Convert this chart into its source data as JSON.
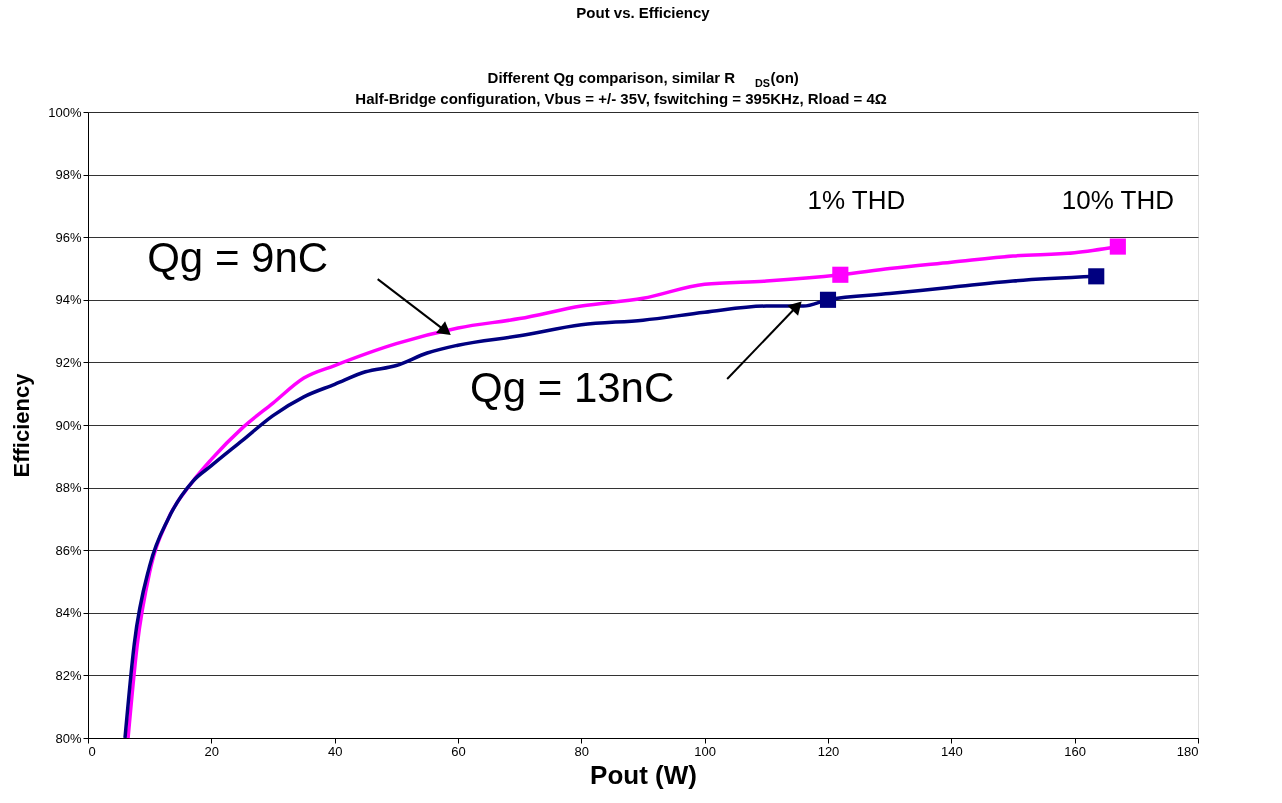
{
  "chart_data": {
    "type": "line",
    "title": "Pout vs. Efficiency",
    "subtitle": "Different Qg comparison, similar R$_{DS}$(on)\nHalf-Bridge configuration, Vbus = +/- 35V, fswitching = 395KHz, Rload = 4Ω",
    "xlabel": "Pout (W)",
    "ylabel": "Efficiency",
    "xlim": [
      0,
      180
    ],
    "xticks": [
      0,
      20,
      40,
      60,
      80,
      100,
      120,
      140,
      160,
      180
    ],
    "ylim": [
      80,
      100
    ],
    "yticks": [
      {
        "value": 80,
        "label": "80%"
      },
      {
        "value": 82,
        "label": "82%"
      },
      {
        "value": 84,
        "label": "84%"
      },
      {
        "value": 86,
        "label": "86%"
      },
      {
        "value": 88,
        "label": "88%"
      },
      {
        "value": 90,
        "label": "90%"
      },
      {
        "value": 92,
        "label": "92%"
      },
      {
        "value": 94,
        "label": "94%"
      },
      {
        "value": 96,
        "label": "96%"
      },
      {
        "value": 98,
        "label": "98%"
      },
      {
        "value": 100,
        "label": "100%"
      }
    ],
    "grid": "y",
    "marker": "none",
    "line_style": "solid",
    "series": [
      {
        "color": "#ff00ff",
        "x": [
          6.5,
          8,
          10,
          13,
          17,
          20,
          25,
          30,
          35,
          40,
          50,
          60,
          70,
          80,
          90,
          100,
          110,
          122,
          130,
          140,
          150,
          160,
          167
        ],
        "values": [
          80,
          83,
          85.3,
          87,
          88.2,
          88.9,
          89.9,
          90.7,
          91.5,
          91.9,
          92.6,
          93.1,
          93.4,
          93.8,
          94.05,
          94.5,
          94.6,
          94.8,
          95.0,
          95.2,
          95.4,
          95.5,
          95.7
        ]
      },
      {
        "color": "#000080",
        "x": [
          6,
          7.5,
          10,
          13,
          17,
          20,
          25,
          30,
          35,
          40,
          45,
          50,
          55,
          60,
          70,
          80,
          90,
          100,
          110,
          116,
          120,
          130,
          140,
          150,
          163.5
        ],
        "values": [
          80,
          83,
          85.5,
          87,
          88.2,
          88.7,
          89.5,
          90.3,
          90.9,
          91.3,
          91.7,
          91.9,
          92.3,
          92.55,
          92.85,
          93.2,
          93.35,
          93.6,
          93.8,
          93.8,
          94.0,
          94.2,
          94.4,
          94.6,
          94.75
        ]
      },
      {
        "type": "scatter",
        "marker": "square",
        "color": "#ff00ff",
        "x": [
          122,
          167
        ],
        "values": [
          94.8,
          95.7
        ]
      },
      {
        "type": "scatter",
        "marker": "square",
        "color": "#000080",
        "x": [
          120,
          163.5
        ],
        "values": [
          94.0,
          94.75
        ]
      }
    ],
    "annotations": [
      {
        "text": "1% THD",
        "x": 122,
        "y": 94.8
      },
      {
        "text": "10% THD",
        "x": 167,
        "y": 95.7
      },
      {
        "text": "Qg = 9nC",
        "x": 58,
        "y": 93.0
      },
      {
        "text": "Qg = 13nC",
        "x": 115,
        "y": 93.8
      }
    ]
  }
}
